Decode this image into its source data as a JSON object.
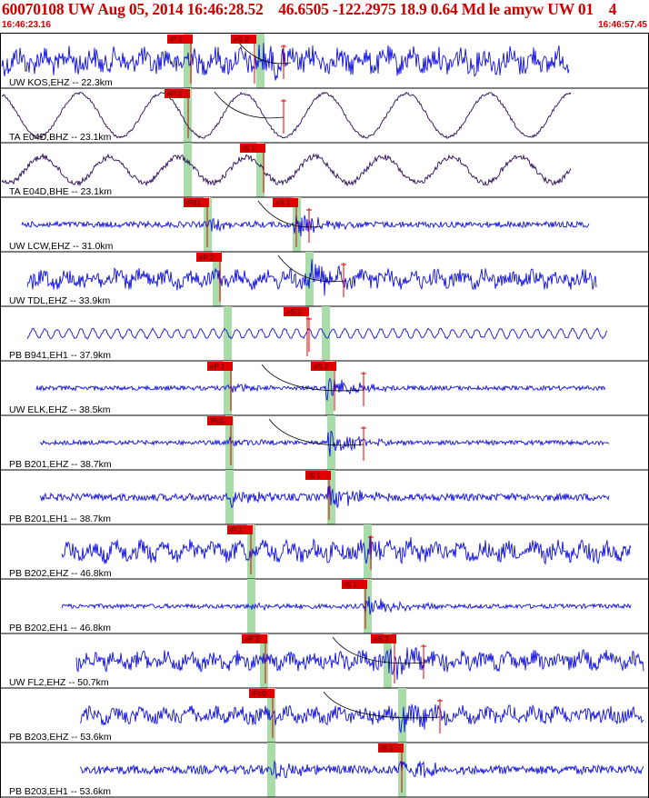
{
  "header": {
    "title": "60070108 UW Aug 05, 2014 16:46:28.52    46.6505 -122.2975 18.9 0.64 Md le amyw UW 01    4",
    "start_time": "16:46:23.16",
    "end_time": "16:46:57.45"
  },
  "colors": {
    "trace": "#1010e0",
    "trace_bb": "#2a0a5a",
    "pick": "#e00000",
    "bar": "#a8dca8",
    "curve": "#000000"
  },
  "traces": [
    {
      "label": "UW KOS,EHZ -- 22.3km",
      "picks": [
        "iP 1",
        "eS 2"
      ]
    },
    {
      "label": "TA E04D,BHZ -- 23.1km",
      "picks": [
        "eP 1"
      ]
    },
    {
      "label": "TA E04D,BHE -- 23.1km",
      "picks": [
        "iS 1"
      ]
    },
    {
      "label": "UW LCW,EHZ -- 31.0km",
      "picks": [
        "iPd1",
        "eS 1"
      ]
    },
    {
      "label": "UW TDL,EHZ -- 33.9km",
      "picks": [
        "eP 2"
      ]
    },
    {
      "label": "PB B941,EH1 -- 37.9km",
      "picks": [
        "eS 2"
      ]
    },
    {
      "label": "UW ELK,EHZ -- 38.5km",
      "picks": [
        "eP 1",
        "eS 2"
      ]
    },
    {
      "label": "PB B201,EHZ -- 38.7km",
      "picks": [
        "iPc0"
      ]
    },
    {
      "label": "PB B201,EH1 -- 38.7km",
      "picks": [
        "iS 1"
      ]
    },
    {
      "label": "PB B202,EHZ -- 46.8km",
      "picks": [
        "iP 1"
      ]
    },
    {
      "label": "PB B202,EH1 -- 46.8km",
      "picks": [
        "iS 1"
      ]
    },
    {
      "label": "UW FL2,EHZ -- 50.7km",
      "picks": [
        "eP 2",
        "eS 2"
      ]
    },
    {
      "label": "PB B203,EHZ -- 53.6km",
      "picks": [
        "iPc0"
      ]
    },
    {
      "label": "PB B203,EH1 -- 53.6km",
      "picks": [
        "iS 1"
      ]
    }
  ]
}
